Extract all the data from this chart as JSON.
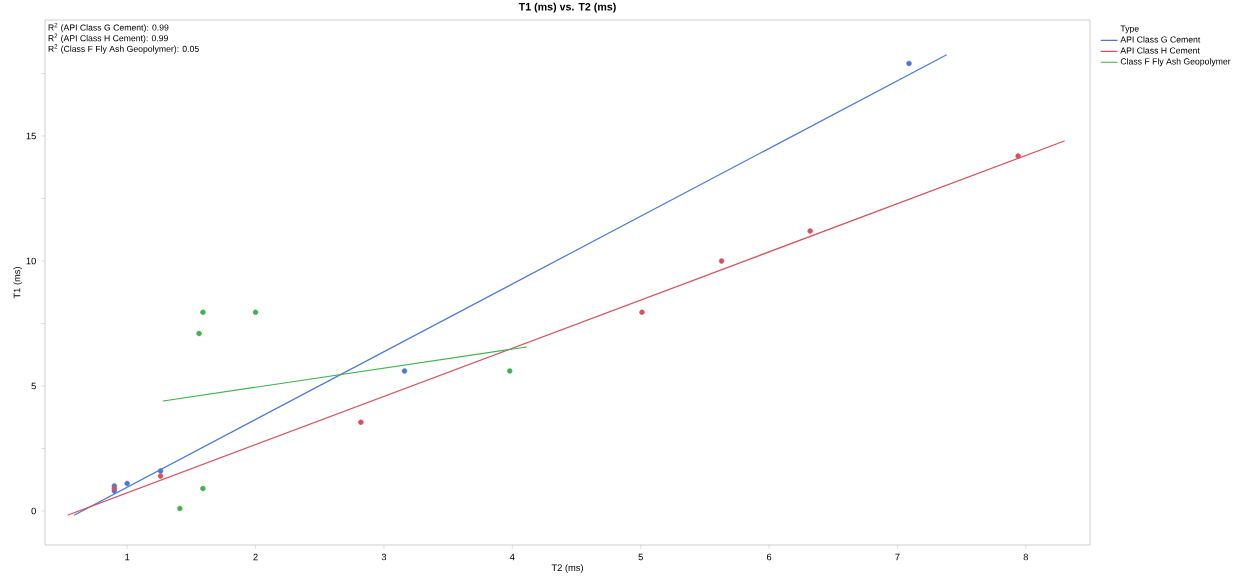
{
  "chart_data": {
    "type": "scatter",
    "title": "T1 (ms) vs. T2 (ms)",
    "xlabel": "T2 (ms)",
    "ylabel": "T1 (ms)",
    "legend_title": "Type",
    "legend": "right",
    "annotations": [
      "R$^{2}$ (API Class G Cement): 0.99",
      "R$^{2}$ (API Class H Cement): 0.99",
      "R$^{2}$ (Class F Fly Ash Geopolymer): 0.05"
    ],
    "xlim": [
      0.36,
      8.5
    ],
    "ylim": [
      -1.36,
      19.64
    ],
    "xticks": [
      1,
      2,
      3,
      4,
      5,
      6,
      7,
      8
    ],
    "yticks": [
      0,
      {
        "value": 2.5,
        "label": null
      },
      5,
      {
        "value": 7.5,
        "label": null
      },
      10,
      {
        "value": 12.5,
        "label": null
      },
      15,
      {
        "value": 17.5,
        "label": null
      }
    ],
    "series": [
      {
        "color": "#4a78d8",
        "x": [
          0.9,
          0.9,
          1.0,
          1.26,
          3.16,
          7.09
        ],
        "values": [
          1.0,
          0.8,
          1.1,
          1.6,
          5.6,
          17.9
        ]
      },
      {
        "color": "#d6515b",
        "x": [
          0.9,
          1.26,
          2.82,
          5.01,
          5.63,
          6.32,
          7.94
        ],
        "values": [
          0.9,
          1.4,
          3.55,
          7.95,
          10.0,
          11.2,
          14.2
        ]
      },
      {
        "color": "#3fb34f",
        "x": [
          1.41,
          1.56,
          1.59,
          1.59,
          2.0,
          3.98
        ],
        "values": [
          0.1,
          7.1,
          7.95,
          0.9,
          7.95,
          5.6
        ]
      },
      {
        "type": "line",
        "name": "API Class G Cement",
        "color": "#4a78d8",
        "x": [
          0.59,
          7.38
        ],
        "values": [
          -0.16,
          18.24
        ]
      },
      {
        "type": "line",
        "name": "API Class H Cement",
        "color": "#d6515b",
        "x": [
          0.54,
          8.3
        ],
        "values": [
          -0.16,
          14.8
        ]
      },
      {
        "type": "line",
        "name": "Class F Fly Ash Geopolymer",
        "color": "#3fb34f",
        "x": [
          1.28,
          4.11
        ],
        "values": [
          4.4,
          6.56
        ]
      }
    ]
  }
}
